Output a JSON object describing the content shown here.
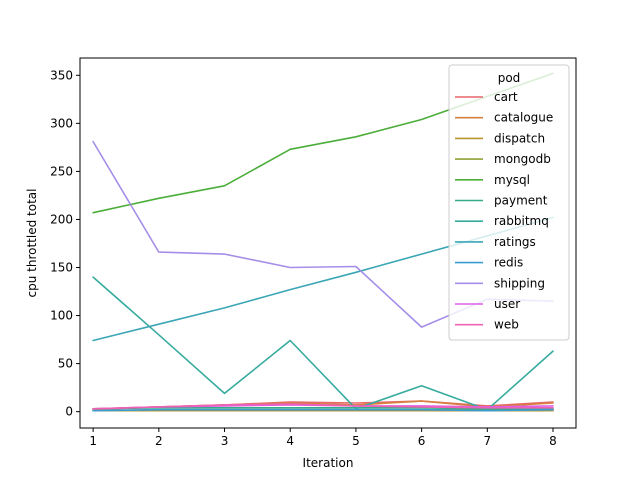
{
  "chart_data": {
    "type": "line",
    "title": "",
    "xlabel": "Iteration",
    "ylabel": "cpu throttled total",
    "x": [
      1,
      2,
      3,
      4,
      5,
      6,
      7,
      8
    ],
    "xlim": [
      0.8,
      8.35
    ],
    "ylim": [
      -17,
      368
    ],
    "xticks": [
      1,
      2,
      3,
      4,
      5,
      6,
      7,
      8
    ],
    "yticks": [
      0,
      50,
      100,
      150,
      200,
      250,
      300,
      350
    ],
    "grid": false,
    "legend": {
      "title": "pod",
      "placement": "top-right"
    },
    "series": [
      {
        "name": "cart",
        "color": "#e8656a",
        "values": [
          3,
          5,
          7,
          10,
          9,
          11,
          6,
          10
        ]
      },
      {
        "name": "catalogue",
        "color": "#d5813d",
        "values": [
          2,
          5,
          7,
          9,
          7,
          11,
          5,
          9
        ]
      },
      {
        "name": "dispatch",
        "color": "#b8962f",
        "values": [
          1,
          1,
          1,
          1,
          1,
          1,
          1,
          1
        ]
      },
      {
        "name": "mongodb",
        "color": "#8fa236",
        "values": [
          1,
          2,
          2,
          2,
          2,
          2,
          2,
          2
        ]
      },
      {
        "name": "mysql",
        "color": "#4cae3a",
        "values": [
          207,
          222,
          235,
          273,
          286,
          304,
          328,
          352
        ]
      },
      {
        "name": "payment",
        "color": "#35ab8a",
        "values": [
          3,
          4,
          4,
          4,
          4,
          4,
          3,
          3
        ]
      },
      {
        "name": "rabbitmq",
        "color": "#37ab9e",
        "values": [
          140,
          80,
          19,
          74,
          3,
          27,
          2,
          63
        ]
      },
      {
        "name": "ratings",
        "color": "#3aa6b5",
        "values": [
          74,
          91,
          108,
          127,
          145,
          164,
          183,
          202
        ]
      },
      {
        "name": "redis",
        "color": "#3b9cd1",
        "values": [
          1,
          2,
          2,
          2,
          2,
          2,
          1,
          2
        ]
      },
      {
        "name": "shipping",
        "color": "#a58ee8",
        "values": [
          281,
          166,
          164,
          150,
          151,
          88,
          117,
          115
        ]
      },
      {
        "name": "user",
        "color": "#e05ee5",
        "values": [
          3,
          5,
          6,
          7,
          6,
          6,
          5,
          6
        ]
      },
      {
        "name": "web",
        "color": "#ee62b6",
        "values": [
          3,
          5,
          7,
          8,
          6,
          5,
          4,
          4
        ]
      }
    ]
  }
}
